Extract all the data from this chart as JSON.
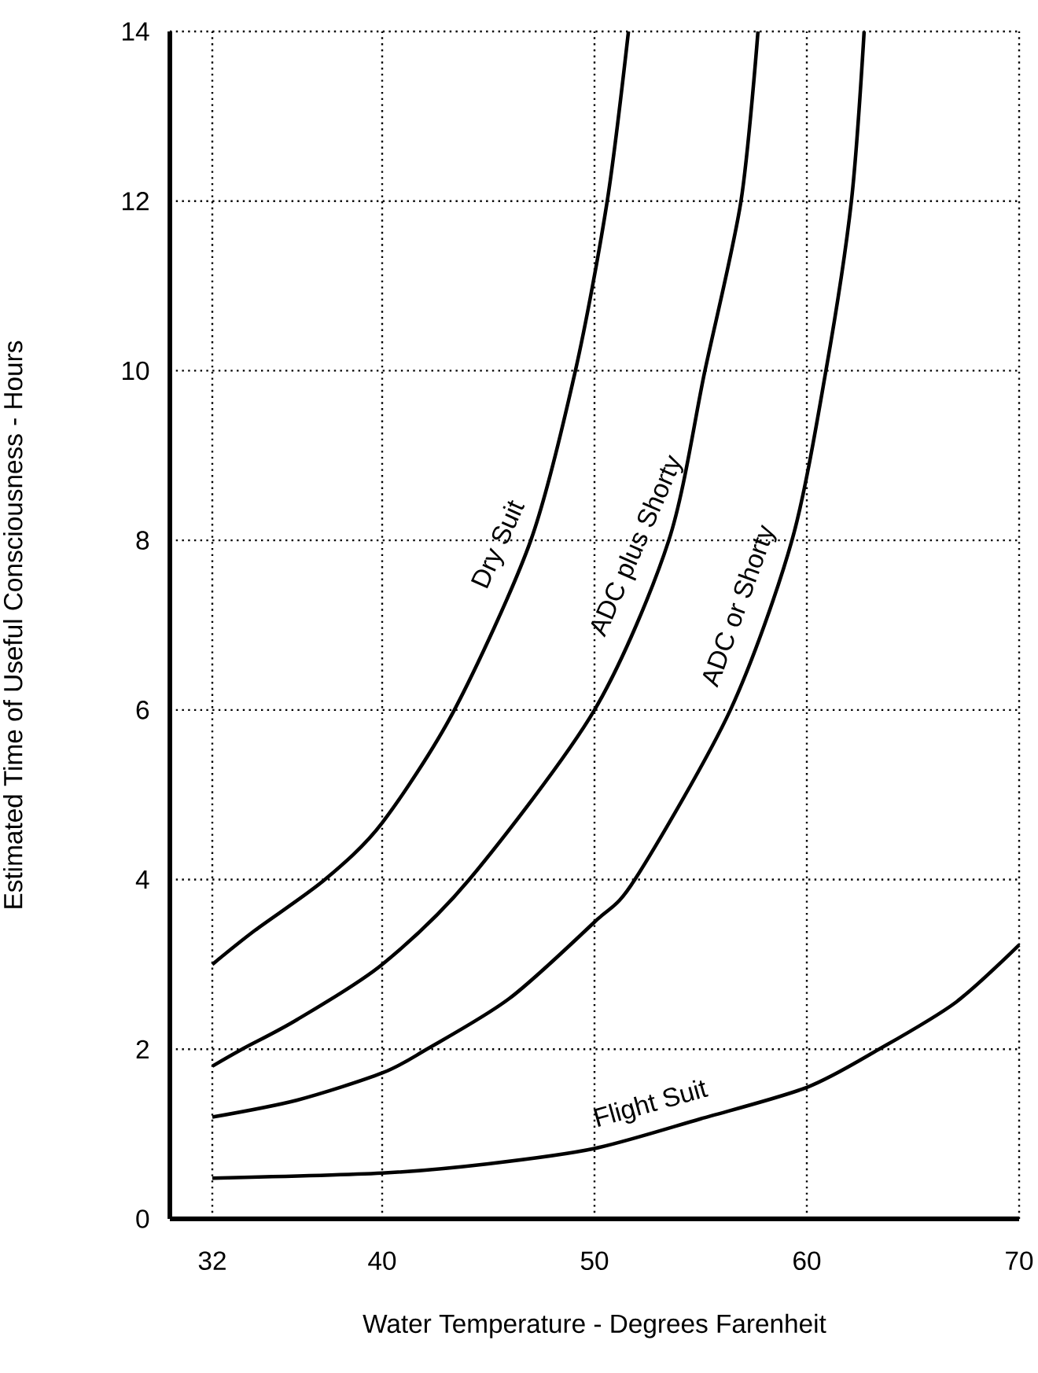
{
  "chart_data": {
    "type": "line",
    "xlabel": "Water Temperature - Degrees Farenheit",
    "ylabel": "Estimated Time of Useful Consciousness - Hours",
    "xlim": [
      30,
      70
    ],
    "ylim": [
      0,
      14
    ],
    "xticks": [
      32,
      40,
      50,
      60,
      70
    ],
    "yticks": [
      0,
      2,
      4,
      6,
      8,
      10,
      12,
      14
    ],
    "grid": true,
    "marker": "none",
    "line_style": "solid",
    "series": [
      {
        "name": "Dry Suit",
        "color": "#000000",
        "x": [
          32,
          34,
          37.3,
          40,
          43.4,
          47.0,
          49.1,
          50.6,
          51.6
        ],
        "values": [
          3.0,
          3.4,
          4.0,
          4.67,
          6,
          8,
          10,
          12,
          14
        ]
      },
      {
        "name": "ADC plus Shorty",
        "color": "#000000",
        "x": [
          32,
          33.4,
          36,
          40,
          44.1,
          50.0,
          53.5,
          55.2,
          56.9,
          57.7
        ],
        "values": [
          1.8,
          2,
          2.35,
          3.0,
          4,
          6,
          8,
          10,
          12,
          14
        ]
      },
      {
        "name": "ADC or Shorty",
        "color": "#000000",
        "x": [
          32,
          36,
          40,
          42.1,
          46,
          50,
          51.9,
          56.4,
          59.3,
          60.9,
          62.1,
          62.7
        ],
        "values": [
          1.2,
          1.4,
          1.72,
          2,
          2.6,
          3.5,
          4,
          6,
          8,
          10,
          12,
          14
        ]
      },
      {
        "name": "Flight Suit",
        "color": "#000000",
        "x": [
          32,
          40,
          45,
          50,
          55,
          60,
          63.4,
          67,
          70
        ],
        "values": [
          0.48,
          0.54,
          0.65,
          0.83,
          1.18,
          1.55,
          2,
          2.55,
          3.23
        ]
      }
    ]
  }
}
